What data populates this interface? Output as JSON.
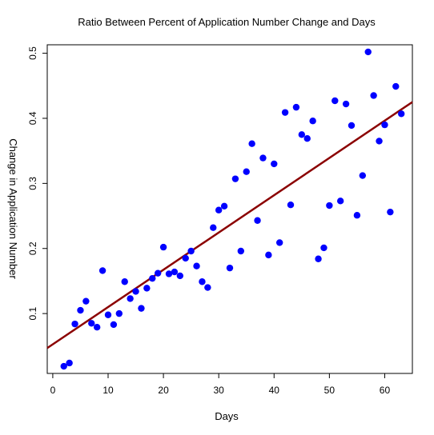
{
  "chart_data": {
    "type": "scatter",
    "title": "Ratio Between Percent of Application Number Change and Days",
    "xlabel": "Days",
    "ylabel": "Change in Application Number",
    "xlim": [
      -1,
      65
    ],
    "ylim": [
      0.008,
      0.513
    ],
    "x_ticks": [
      0,
      10,
      20,
      30,
      40,
      50,
      60
    ],
    "y_ticks": [
      0.1,
      0.2,
      0.3,
      0.4,
      0.5
    ],
    "grid": false,
    "colors": {
      "points": "#0000ff",
      "fit_line": "#8b0000"
    },
    "points": [
      [
        2,
        0.019
      ],
      [
        3,
        0.024
      ],
      [
        4,
        0.084
      ],
      [
        5,
        0.105
      ],
      [
        6,
        0.119
      ],
      [
        7,
        0.085
      ],
      [
        8,
        0.079
      ],
      [
        9,
        0.166
      ],
      [
        10,
        0.098
      ],
      [
        11,
        0.083
      ],
      [
        12,
        0.1
      ],
      [
        13,
        0.149
      ],
      [
        14,
        0.123
      ],
      [
        15,
        0.134
      ],
      [
        16,
        0.108
      ],
      [
        17,
        0.139
      ],
      [
        18,
        0.154
      ],
      [
        19,
        0.162
      ],
      [
        20,
        0.202
      ],
      [
        21,
        0.161
      ],
      [
        22,
        0.164
      ],
      [
        23,
        0.158
      ],
      [
        24,
        0.185
      ],
      [
        25,
        0.196
      ],
      [
        26,
        0.173
      ],
      [
        27,
        0.149
      ],
      [
        28,
        0.14
      ],
      [
        29,
        0.232
      ],
      [
        30,
        0.259
      ],
      [
        31,
        0.265
      ],
      [
        32,
        0.17
      ],
      [
        33,
        0.307
      ],
      [
        34,
        0.196
      ],
      [
        35,
        0.318
      ],
      [
        36,
        0.361
      ],
      [
        37,
        0.243
      ],
      [
        38,
        0.339
      ],
      [
        39,
        0.19
      ],
      [
        40,
        0.33
      ],
      [
        41,
        0.209
      ],
      [
        42,
        0.409
      ],
      [
        43,
        0.267
      ],
      [
        44,
        0.417
      ],
      [
        45,
        0.375
      ],
      [
        46,
        0.369
      ],
      [
        47,
        0.396
      ],
      [
        48,
        0.184
      ],
      [
        49,
        0.201
      ],
      [
        50,
        0.266
      ],
      [
        51,
        0.427
      ],
      [
        52,
        0.273
      ],
      [
        53,
        0.422
      ],
      [
        54,
        0.389
      ],
      [
        55,
        0.251
      ],
      [
        56,
        0.312
      ],
      [
        57,
        0.502
      ],
      [
        58,
        0.435
      ],
      [
        59,
        0.365
      ],
      [
        60,
        0.39
      ],
      [
        61,
        0.256
      ],
      [
        62,
        0.449
      ],
      [
        63,
        0.407
      ]
    ],
    "fit_line": {
      "x": [
        -1,
        65
      ],
      "y": [
        0.047,
        0.425
      ]
    }
  }
}
